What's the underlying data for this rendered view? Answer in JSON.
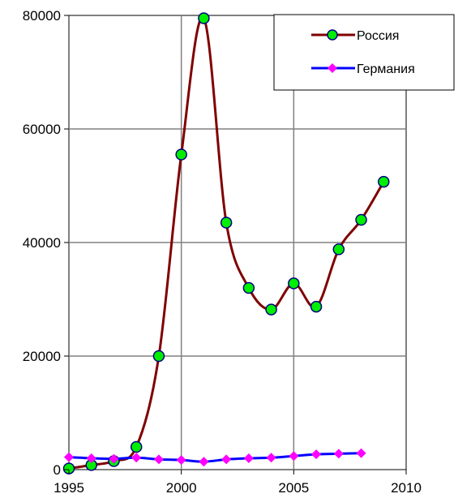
{
  "chart_data": {
    "type": "line",
    "title": "",
    "xlabel": "",
    "ylabel": "",
    "xlim": [
      1995,
      2010
    ],
    "ylim": [
      0,
      80000
    ],
    "x_ticks": [
      "1995",
      "2000",
      "2005",
      "2010"
    ],
    "y_ticks": [
      "0",
      "20000",
      "40000",
      "60000",
      "80000"
    ],
    "grid": true,
    "legend_position": "top-right",
    "series": [
      {
        "name": "Россия",
        "color": "#800000",
        "marker": "circle",
        "marker_color": "#00ee00",
        "marker_edge": "#000080",
        "x": [
          1995,
          1996,
          1997,
          1998,
          1999,
          2000,
          2001,
          2002,
          2003,
          2004,
          2005,
          2006,
          2007,
          2008,
          2009
        ],
        "y": [
          200,
          800,
          1500,
          4000,
          20000,
          55500,
          79500,
          43500,
          32000,
          28200,
          32800,
          28700,
          38800,
          44000,
          50700
        ]
      },
      {
        "name": "Германия",
        "color": "#0000ff",
        "marker": "diamond",
        "marker_color": "#ff00ff",
        "x": [
          1995,
          1996,
          1997,
          1998,
          1999,
          2000,
          2001,
          2002,
          2003,
          2004,
          2005,
          2006,
          2007,
          2008
        ],
        "y": [
          2200,
          2000,
          1900,
          2100,
          1800,
          1700,
          1400,
          1800,
          2000,
          2100,
          2400,
          2700,
          2800,
          2900
        ]
      }
    ]
  }
}
